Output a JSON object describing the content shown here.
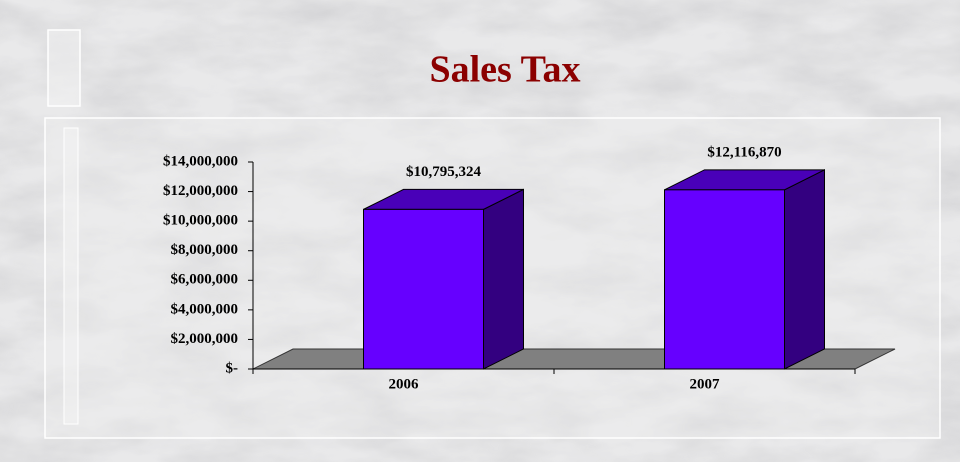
{
  "chart_data": {
    "type": "bar3d",
    "title": "Sales Tax",
    "categories": [
      "2006",
      "2007"
    ],
    "values": [
      10795324,
      12116870
    ],
    "value_labels": [
      "$10,795,324",
      "$12,116,870"
    ],
    "color": "#6600ff",
    "ylim": [
      0,
      14000000
    ],
    "yticks": [
      {
        "value": 0,
        "label": "$-"
      },
      {
        "value": 2000000,
        "label": "$2,000,000"
      },
      {
        "value": 4000000,
        "label": "$4,000,000"
      },
      {
        "value": 6000000,
        "label": "$6,000,000"
      },
      {
        "value": 8000000,
        "label": "$8,000,000"
      },
      {
        "value": 10000000,
        "label": "$10,000,000"
      },
      {
        "value": 12000000,
        "label": "$12,000,000"
      },
      {
        "value": 14000000,
        "label": "$14,000,000"
      }
    ]
  }
}
